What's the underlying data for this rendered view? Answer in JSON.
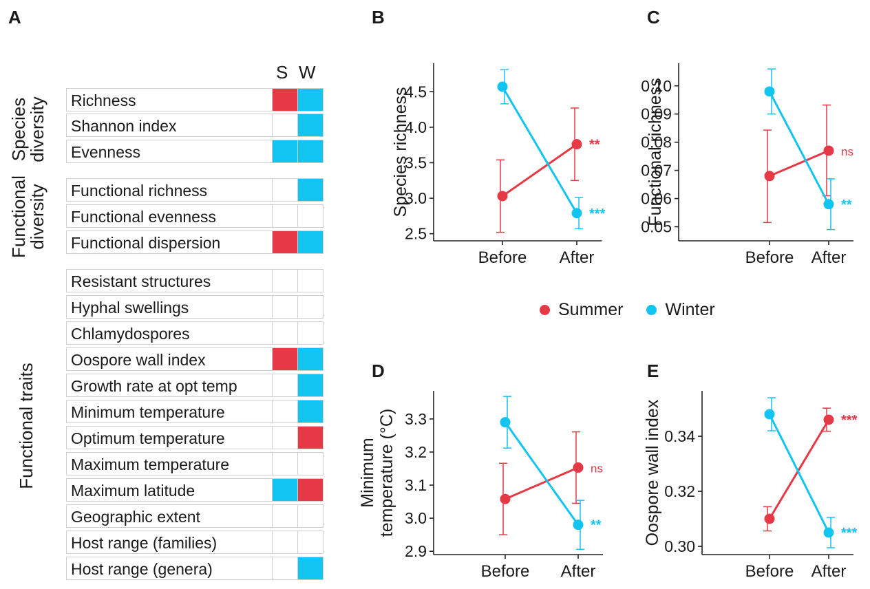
{
  "panels": {
    "a": "A",
    "b": "B",
    "c": "C",
    "d": "D",
    "e": "E"
  },
  "colors": {
    "summer": "#e63946",
    "winter": "#12c4f0",
    "grid": "#cfcfcf"
  },
  "heatmap": {
    "col_s": "S",
    "col_w": "W",
    "groups": [
      "Species\ndiversity",
      "Functional\ndiversity",
      "Functional traits"
    ],
    "rows": [
      {
        "label": "Richness",
        "s": "red",
        "w": "blue"
      },
      {
        "label": "Shannon index",
        "s": "none",
        "w": "blue"
      },
      {
        "label": "Evenness",
        "s": "blue",
        "w": "blue"
      },
      {
        "label": "Functional richness",
        "s": "none",
        "w": "blue"
      },
      {
        "label": "Functional evenness",
        "s": "none",
        "w": "none"
      },
      {
        "label": "Functional dispersion",
        "s": "red",
        "w": "blue"
      },
      {
        "label": "Resistant structures",
        "s": "none",
        "w": "none"
      },
      {
        "label": "Hyphal swellings",
        "s": "none",
        "w": "none"
      },
      {
        "label": "Chlamydospores",
        "s": "none",
        "w": "none"
      },
      {
        "label": "Oospore wall index",
        "s": "red",
        "w": "blue"
      },
      {
        "label": "Growth rate at opt temp",
        "s": "none",
        "w": "blue"
      },
      {
        "label": "Minimum temperature",
        "s": "none",
        "w": "blue"
      },
      {
        "label": "Optimum temperature",
        "s": "none",
        "w": "red"
      },
      {
        "label": "Maximum temperature",
        "s": "none",
        "w": "none"
      },
      {
        "label": "Maximum latitude",
        "s": "blue",
        "w": "red"
      },
      {
        "label": "Geographic extent",
        "s": "none",
        "w": "none"
      },
      {
        "label": "Host range (families)",
        "s": "none",
        "w": "none"
      },
      {
        "label": "Host range (genera)",
        "s": "none",
        "w": "blue"
      }
    ]
  },
  "legend": {
    "summer": "Summer",
    "winter": "Winter"
  },
  "chart_data": [
    {
      "type": "line",
      "panel": "B",
      "ylabel": [
        "Species richness"
      ],
      "categories": [
        "Before",
        "After"
      ],
      "ylim": [
        2.4,
        4.9
      ],
      "yticks": [
        2.5,
        3.0,
        3.5,
        4.0,
        4.5
      ],
      "ytick_labels": [
        "2.5",
        "3.0",
        "3.5",
        "4.0",
        "4.5"
      ],
      "series": [
        {
          "name": "Summer",
          "values": [
            3.03,
            3.76
          ],
          "lower": [
            2.52,
            3.25
          ],
          "upper": [
            3.54,
            4.27
          ],
          "sig": "**"
        },
        {
          "name": "Winter",
          "values": [
            4.57,
            2.79
          ],
          "lower": [
            4.33,
            2.57
          ],
          "upper": [
            4.81,
            3.01
          ],
          "sig": "***"
        }
      ]
    },
    {
      "type": "line",
      "panel": "C",
      "ylabel": [
        "Functional richness"
      ],
      "categories": [
        "Before",
        "After"
      ],
      "ylim": [
        0.045,
        0.108
      ],
      "yticks": [
        0.05,
        0.06,
        0.07,
        0.08,
        0.09,
        0.1
      ],
      "ytick_labels": [
        "0.05",
        "0.06",
        "0.07",
        "0.08",
        "0.09",
        "0.10"
      ],
      "series": [
        {
          "name": "Summer",
          "values": [
            0.068,
            0.077
          ],
          "lower": [
            0.0515,
            0.061
          ],
          "upper": [
            0.0843,
            0.0932
          ],
          "sig": "ns"
        },
        {
          "name": "Winter",
          "values": [
            0.098,
            0.058
          ],
          "lower": [
            0.09,
            0.049
          ],
          "upper": [
            0.106,
            0.067
          ],
          "sig": "**"
        }
      ]
    },
    {
      "type": "line",
      "panel": "D",
      "ylabel": [
        "Minimum",
        "temperature (°C)"
      ],
      "categories": [
        "Before",
        "After"
      ],
      "ylim": [
        2.89,
        3.385
      ],
      "yticks": [
        2.9,
        3.0,
        3.1,
        3.2,
        3.3
      ],
      "ytick_labels": [
        "2.9",
        "3.0",
        "3.1",
        "3.2",
        "3.3"
      ],
      "series": [
        {
          "name": "Summer",
          "values": [
            3.058,
            3.153
          ],
          "lower": [
            2.95,
            3.045
          ],
          "upper": [
            3.166,
            3.261
          ],
          "sig": "ns"
        },
        {
          "name": "Winter",
          "values": [
            3.29,
            2.98
          ],
          "lower": [
            3.212,
            2.906
          ],
          "upper": [
            3.368,
            3.054
          ],
          "sig": "**"
        }
      ]
    },
    {
      "type": "line",
      "panel": "E",
      "ylabel": [
        "Oospore wall index"
      ],
      "categories": [
        "Before",
        "After"
      ],
      "ylim": [
        0.297,
        0.3565
      ],
      "yticks": [
        0.3,
        0.32,
        0.34
      ],
      "ytick_labels": [
        "0.30",
        "0.32",
        "0.34"
      ],
      "series": [
        {
          "name": "Summer",
          "values": [
            0.31,
            0.346
          ],
          "lower": [
            0.3056,
            0.3418
          ],
          "upper": [
            0.3144,
            0.3502
          ],
          "sig": "***"
        },
        {
          "name": "Winter",
          "values": [
            0.348,
            0.305
          ],
          "lower": [
            0.342,
            0.2995
          ],
          "upper": [
            0.354,
            0.3105
          ],
          "sig": "***"
        }
      ]
    }
  ]
}
